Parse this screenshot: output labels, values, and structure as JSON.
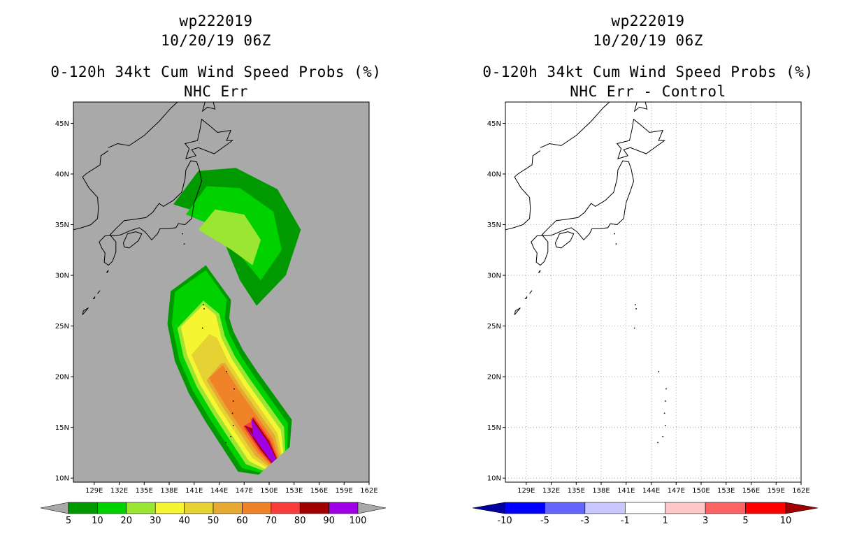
{
  "left": {
    "title_storm": "wp222019",
    "title_time": "10/20/19 06Z",
    "title_product": "0-120h 34kt Cum Wind Speed Probs (%)",
    "title_subtitle": "NHC Err",
    "colorbar": {
      "colors": [
        "#009a00",
        "#00d200",
        "#9ae632",
        "#f5f532",
        "#e6d232",
        "#e6aa32",
        "#f08228",
        "#fa3c3c",
        "#a00000",
        "#a000e6"
      ],
      "labels": [
        "5",
        "10",
        "20",
        "30",
        "40",
        "50",
        "60",
        "70",
        "80",
        "90",
        "100"
      ]
    }
  },
  "right": {
    "title_storm": "wp222019",
    "title_time": "10/20/19 06Z",
    "title_product": "0-120h 34kt Cum Wind Speed Probs (%)",
    "title_subtitle": "NHC Err - Control",
    "colorbar": {
      "colors": [
        "#0000a0",
        "#0000ff",
        "#6464ff",
        "#c8c8ff",
        "#ffffff",
        "#ffc8c8",
        "#ff6464",
        "#ff0000",
        "#a00000"
      ],
      "labels": [
        "-10",
        "-5",
        "-3",
        "-1",
        "1",
        "3",
        "5",
        "10"
      ]
    }
  },
  "map": {
    "lat_ticks": [
      10,
      15,
      20,
      25,
      30,
      35,
      40,
      45
    ],
    "lat_labels": [
      "10N",
      "15N",
      "20N",
      "25N",
      "30N",
      "35N",
      "40N",
      "45N"
    ],
    "lon_ticks": [
      129,
      132,
      135,
      138,
      141,
      144,
      147,
      150,
      153,
      156,
      159,
      162
    ],
    "lon_labels": [
      "129E",
      "132E",
      "135E",
      "138E",
      "141E",
      "144E",
      "147E",
      "150E",
      "153E",
      "156E",
      "159E",
      "162E"
    ],
    "lon_range": [
      126.5,
      162
    ],
    "lat_range": [
      9.6,
      47.1
    ]
  },
  "colors": {
    "ocean_left": "#a9a9a9",
    "grid": "#9a9a9a"
  }
}
